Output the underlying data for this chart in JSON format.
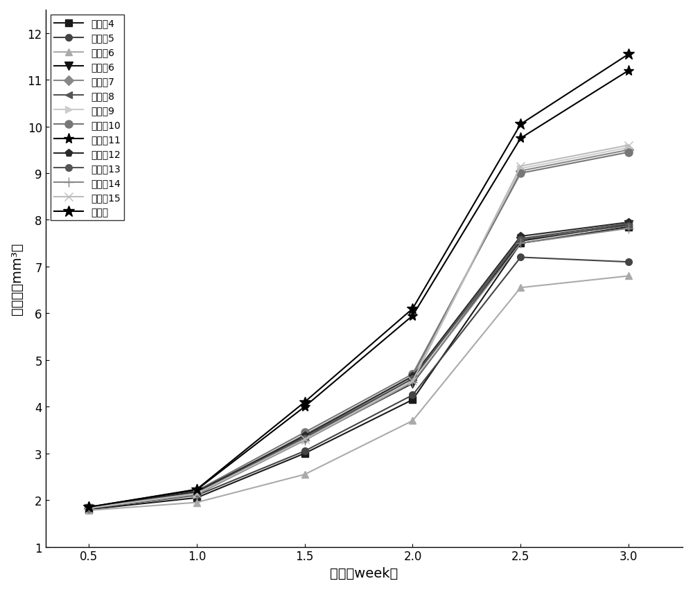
{
  "x": [
    0.5,
    1.0,
    1.5,
    2.0,
    2.5,
    3.0
  ],
  "series": [
    {
      "label": "实施兦4",
      "color": "#1a1a1a",
      "marker": "s",
      "markersize": 7,
      "values": [
        1.8,
        2.05,
        3.0,
        4.15,
        7.5,
        7.85
      ],
      "linestyle": "-"
    },
    {
      "label": "实施兦5",
      "color": "#444444",
      "marker": "o",
      "markersize": 7,
      "values": [
        1.82,
        2.1,
        3.05,
        4.25,
        7.2,
        7.1
      ],
      "linestyle": "-"
    },
    {
      "label": "实施兦6",
      "color": "#aaaaaa",
      "marker": "^",
      "markersize": 7,
      "values": [
        1.78,
        1.95,
        2.55,
        3.7,
        6.55,
        6.8
      ],
      "linestyle": "-"
    },
    {
      "label": "对比兦6",
      "color": "#111111",
      "marker": "v",
      "markersize": 8,
      "values": [
        1.82,
        2.12,
        3.3,
        4.5,
        7.55,
        7.9
      ],
      "linestyle": "-"
    },
    {
      "label": "对比兦7",
      "color": "#888888",
      "marker": "D",
      "markersize": 7,
      "values": [
        1.83,
        2.15,
        3.4,
        4.65,
        9.05,
        9.5
      ],
      "linestyle": "-"
    },
    {
      "label": "对比兦8",
      "color": "#555555",
      "marker": "<",
      "markersize": 7,
      "values": [
        1.84,
        2.18,
        3.35,
        4.6,
        7.6,
        7.92
      ],
      "linestyle": "-"
    },
    {
      "label": "对比兦9",
      "color": "#cccccc",
      "marker": ">",
      "markersize": 7,
      "values": [
        1.83,
        2.12,
        3.28,
        4.55,
        9.1,
        9.55
      ],
      "linestyle": "-"
    },
    {
      "label": "对比兦10",
      "color": "#777777",
      "marker": "o",
      "markersize": 8,
      "values": [
        1.84,
        2.2,
        3.45,
        4.7,
        9.0,
        9.45
      ],
      "linestyle": "-"
    },
    {
      "label": "对比兦11",
      "color": "#000000",
      "marker": "*",
      "markersize": 11,
      "values": [
        1.85,
        2.22,
        4.0,
        5.95,
        9.75,
        11.2
      ],
      "linestyle": "-"
    },
    {
      "label": "对比兦12",
      "color": "#2a2a2a",
      "marker": "p",
      "markersize": 8,
      "values": [
        1.84,
        2.18,
        3.38,
        4.65,
        7.65,
        7.95
      ],
      "linestyle": "-"
    },
    {
      "label": "对比兦13",
      "color": "#555555",
      "marker": "o",
      "markersize": 7,
      "values": [
        1.83,
        2.15,
        3.32,
        4.6,
        7.58,
        7.88
      ],
      "linestyle": "-"
    },
    {
      "label": "对比兦14",
      "color": "#888888",
      "marker": "+",
      "markersize": 10,
      "values": [
        1.82,
        2.12,
        3.28,
        4.52,
        7.5,
        7.82
      ],
      "linestyle": "-"
    },
    {
      "label": "对比兦15",
      "color": "#bbbbbb",
      "marker": "x",
      "markersize": 9,
      "values": [
        1.83,
        2.14,
        3.3,
        4.55,
        9.15,
        9.6
      ],
      "linestyle": "-"
    },
    {
      "label": "模型组",
      "color": "#000000",
      "marker": "*",
      "markersize": 12,
      "values": [
        1.85,
        2.23,
        4.1,
        6.1,
        10.05,
        11.55
      ],
      "linestyle": "-"
    }
  ],
  "xlabel": "时间（week）",
  "ylabel": "瘀体积（mm³）",
  "xlim": [
    0.3,
    3.25
  ],
  "ylim": [
    1.0,
    12.5
  ],
  "xticks": [
    0.5,
    1.0,
    1.5,
    2.0,
    2.5,
    3.0
  ],
  "yticks": [
    1,
    2,
    3,
    4,
    5,
    6,
    7,
    8,
    9,
    10,
    11,
    12
  ],
  "legend_loc": "upper left",
  "legend_fontsize": 12,
  "axis_fontsize": 14,
  "tick_fontsize": 12,
  "linewidth": 1.5
}
